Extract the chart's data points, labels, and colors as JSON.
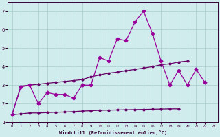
{
  "xlabel": "Windchill (Refroidissement éolien,°C)",
  "x": [
    0,
    1,
    2,
    3,
    4,
    5,
    6,
    7,
    8,
    9,
    10,
    11,
    12,
    13,
    14,
    15,
    16,
    17,
    18,
    19,
    20,
    21,
    22,
    23
  ],
  "line1": [
    1.4,
    2.9,
    3.0,
    2.0,
    2.6,
    2.5,
    2.5,
    2.3,
    3.0,
    3.0,
    4.5,
    4.3,
    5.5,
    5.4,
    6.4,
    7.0,
    5.8,
    4.3,
    3.0,
    3.8,
    3.0,
    3.85,
    3.15,
    null
  ],
  "line2_upper": [
    1.4,
    2.95,
    3.0,
    3.05,
    3.1,
    3.15,
    3.2,
    3.25,
    3.3,
    3.45,
    3.55,
    3.65,
    3.7,
    3.78,
    3.85,
    3.92,
    4.0,
    4.1,
    4.15,
    4.25,
    4.3,
    null,
    null,
    null
  ],
  "line2_lower": [
    1.4,
    1.45,
    1.5,
    1.5,
    1.52,
    1.54,
    1.55,
    1.57,
    1.6,
    1.62,
    1.64,
    1.65,
    1.66,
    1.67,
    1.68,
    1.69,
    1.7,
    1.71,
    1.72,
    1.72,
    null,
    null,
    null,
    null
  ],
  "line_color": "#990099",
  "line_color2": "#660066",
  "bg_color": "#d0ecec",
  "grid_color": "#a8cccc",
  "axis_color": "#330033",
  "ylim": [
    1.0,
    7.5
  ],
  "yticks": [
    1,
    2,
    3,
    4,
    5,
    6,
    7
  ],
  "xlim_min": -0.5,
  "xlim_max": 23.5,
  "xticks": [
    0,
    1,
    2,
    3,
    4,
    5,
    6,
    7,
    8,
    9,
    10,
    11,
    12,
    13,
    14,
    15,
    16,
    17,
    18,
    19,
    20,
    21,
    22,
    23
  ],
  "marker_size": 2.5,
  "linewidth": 0.9
}
